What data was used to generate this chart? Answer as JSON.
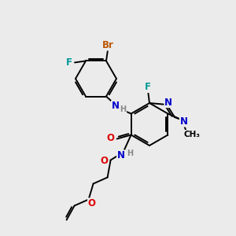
{
  "bg_color": "#ebebeb",
  "bond_color": "#000000",
  "atom_colors": {
    "N": "#0000cc",
    "O": "#dd0000",
    "F": "#009999",
    "Br": "#bb5500",
    "H": "#888888",
    "C": "#000000"
  },
  "figsize": [
    3.0,
    3.0
  ],
  "dpi": 100,
  "lw": 1.4,
  "fs": 8.5
}
